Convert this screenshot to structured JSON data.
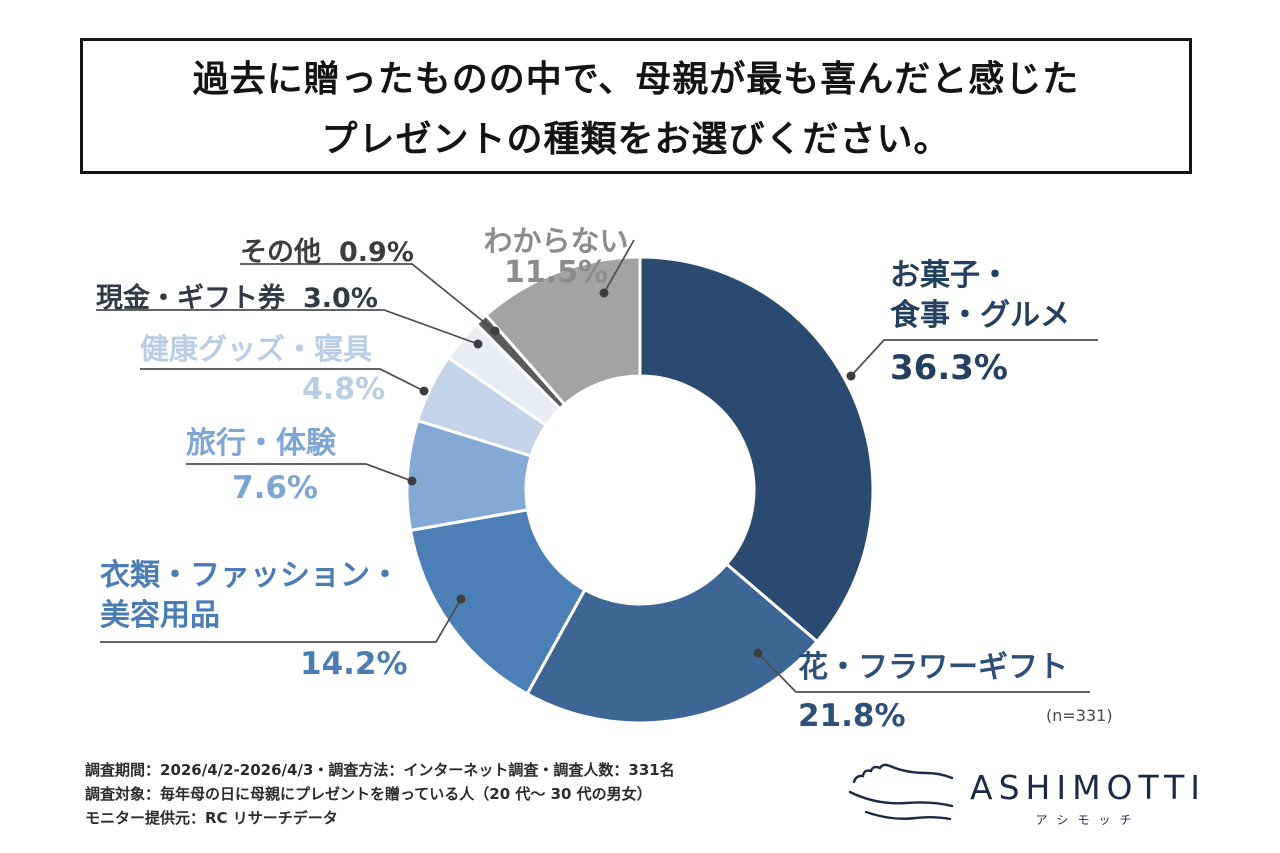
{
  "title": {
    "line1": "過去に贈ったものの中で、母親が最も喜んだと感じた",
    "line2": "プレゼントの種類をお選びください。"
  },
  "chart_data": {
    "type": "pie",
    "donut": true,
    "title": "過去に贈ったものの中で、母親が最も喜んだと感じたプレゼントの種類をお選びください。",
    "n_label": "(n=331)",
    "total_respondents": 331,
    "legend_position": "around",
    "segments": [
      {
        "label": "お菓子・食事・グルメ",
        "label_display": "お菓子・\n食事・グルメ",
        "value": 36.3,
        "pct": "36.3%",
        "color": "#2b4a6f",
        "label_color": "#24405f"
      },
      {
        "label": "花・フラワーギフト",
        "label_display": "花・フラワーギフト",
        "value": 21.8,
        "pct": "21.8%",
        "color": "#3e6695",
        "label_color": "#2e5078"
      },
      {
        "label": "衣類・ファッション・美容用品",
        "label_display": "衣類・ファッション・\n美容用品",
        "value": 14.2,
        "pct": "14.2%",
        "color": "#4c7fb5",
        "label_color": "#4b7db4"
      },
      {
        "label": "旅行・体験",
        "label_display": "旅行・体験",
        "value": 7.6,
        "pct": "7.6%",
        "color": "#83a9d4",
        "label_color": "#7fa6d2"
      },
      {
        "label": "健康グッズ・寝具",
        "label_display": "健康グッズ・寝具",
        "value": 4.8,
        "pct": "4.8%",
        "color": "#c4d4e8",
        "label_color": "#b9cde4"
      },
      {
        "label": "現金・ギフト券",
        "label_display": "現金・ギフト券",
        "value": 3.0,
        "pct": "3.0%",
        "color": "#e9edf2",
        "label_color": "#323a46"
      },
      {
        "label": "その他",
        "label_display": "その他",
        "value": 0.9,
        "pct": "0.9%",
        "color": "#5a5a5a",
        "label_color": "#3d3d3d"
      },
      {
        "label": "わからない",
        "label_display": "わからない",
        "value": 11.5,
        "pct": "11.5%",
        "color": "#a3a3a3",
        "label_color": "#8c8c8c"
      }
    ]
  },
  "footer": {
    "lines": [
      "調査期間：2026/4/2-2026/4/3・調査方法：インターネット調査・調査人数：331名",
      "調査対象：毎年母の日に母親にプレゼントを贈っている人（20 代〜 30 代の男女）",
      "モニター提供元：RC リサーチデータ"
    ]
  },
  "brand": {
    "name": "ASHIMOTTI",
    "sub": "アシモッチ"
  }
}
